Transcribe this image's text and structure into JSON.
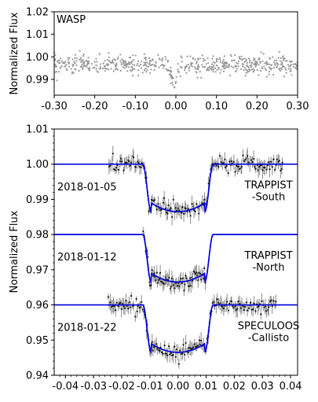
{
  "chart_data": [
    {
      "type": "scatter",
      "panel": "top",
      "title": "",
      "annotation": "WASP",
      "xlabel": "",
      "ylabel": "Normalized Flux",
      "xlim": [
        -0.3,
        0.3
      ],
      "ylim": [
        0.983,
        1.02
      ],
      "x_ticks": [
        -0.3,
        -0.2,
        -0.1,
        0.0,
        0.1,
        0.2,
        0.3
      ],
      "x_tick_labels": [
        "-0.30",
        "-0.20",
        "-0.10",
        "0.00",
        "0.10",
        "0.20",
        "0.30"
      ],
      "y_ticks": [
        0.99,
        1.0,
        1.01,
        1.02
      ],
      "y_tick_labels": [
        "0.99",
        "1.00",
        "1.01",
        "1.02"
      ],
      "series": [
        {
          "marker_color": "#999999",
          "description_points": "about 600 grey points scattered around 0.996 with a narrow dip to about 0.987 near phase 0.00",
          "x_range": [
            -0.3,
            0.3
          ],
          "baseline": 0.9965,
          "scatter": 0.0025,
          "dip_center": -0.005,
          "dip_depth": 0.009,
          "dip_halfwidth": 0.015
        }
      ]
    },
    {
      "type": "line",
      "panel": "bottom",
      "title": "",
      "xlabel": "",
      "ylabel": "Normalized Flux",
      "xlim": [
        -0.044,
        0.0425
      ],
      "ylim": [
        0.94,
        1.01
      ],
      "x_ticks": [
        -0.04,
        -0.03,
        -0.02,
        -0.01,
        0.0,
        0.01,
        0.02,
        0.03,
        0.04
      ],
      "x_tick_labels": [
        "-0.04",
        "-0.03",
        "-0.02",
        "-0.01",
        "0.00",
        "0.01",
        "0.02",
        "0.03",
        "0.04"
      ],
      "y_ticks": [
        0.94,
        0.95,
        0.96,
        0.97,
        0.98,
        0.99,
        1.0,
        1.01
      ],
      "y_tick_labels": [
        "0.94",
        "0.95",
        "0.96",
        "0.97",
        "0.98",
        "0.99",
        "1.00",
        "1.01"
      ],
      "model_color": "#0000dd",
      "series": [
        {
          "date_label": "2018-01-05",
          "telescope_label": [
            "TRAPPIST",
            "-South"
          ],
          "baseline": 1.0,
          "depth": 0.0135,
          "ingress_start": -0.0125,
          "ingress_end": -0.0095,
          "egress_start": 0.0095,
          "egress_end": 0.0125,
          "data_x_range": [
            -0.0245,
            0.0375
          ]
        },
        {
          "date_label": "2018-01-12",
          "telescope_label": [
            "TRAPPIST",
            "-North"
          ],
          "baseline": 0.98,
          "depth": 0.0135,
          "ingress_start": -0.0125,
          "ingress_end": -0.0095,
          "egress_start": 0.0095,
          "egress_end": 0.0125,
          "data_x_range": [
            -0.0125,
            0.01
          ]
        },
        {
          "date_label": "2018-01-22",
          "telescope_label": [
            "SPECULOOS",
            "-Callisto"
          ],
          "baseline": 0.96,
          "depth": 0.0135,
          "ingress_start": -0.0125,
          "ingress_end": -0.0095,
          "egress_start": 0.0095,
          "egress_end": 0.0125,
          "data_x_range": [
            -0.025,
            0.035
          ]
        }
      ]
    }
  ]
}
